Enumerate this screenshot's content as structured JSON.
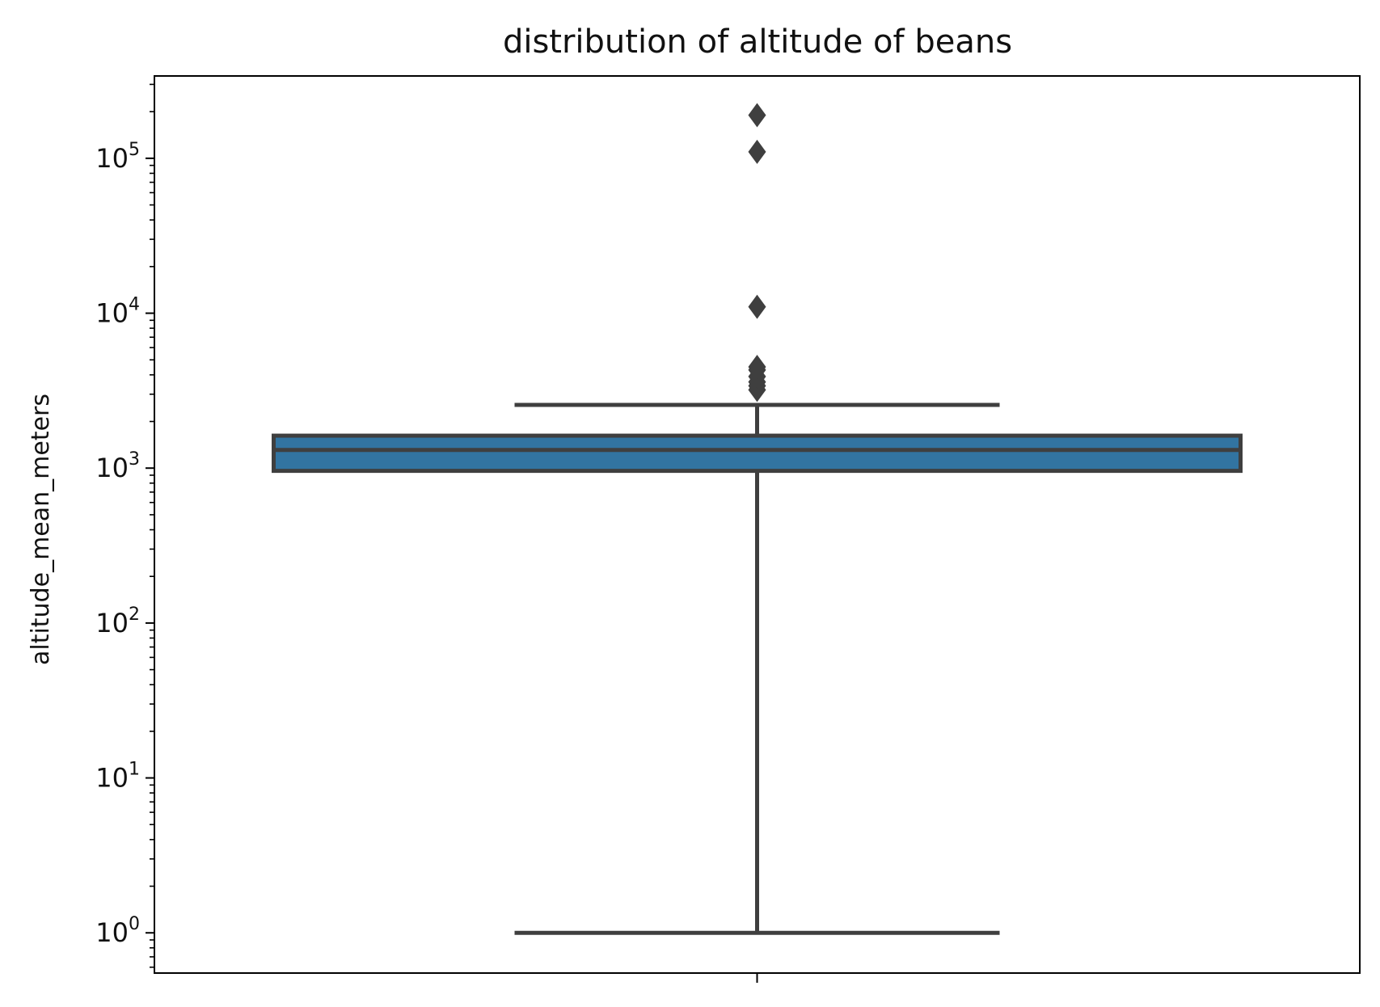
{
  "chart_data": {
    "type": "box",
    "title": "distribution of altitude of beans",
    "ylabel": "altitude_mean_meters",
    "xlabel": "",
    "y_scale": "log",
    "ylim": [
      0.55,
      340000
    ],
    "yticks": [
      {
        "value": 1,
        "base": "10",
        "exp": "0"
      },
      {
        "value": 10,
        "base": "10",
        "exp": "1"
      },
      {
        "value": 100,
        "base": "10",
        "exp": "2"
      },
      {
        "value": 1000,
        "base": "10",
        "exp": "3"
      },
      {
        "value": 10000,
        "base": "10",
        "exp": "4"
      },
      {
        "value": 100000,
        "base": "10",
        "exp": "5"
      }
    ],
    "box": {
      "whisker_low": 1,
      "q1": 960,
      "median": 1310,
      "q3": 1620,
      "whisker_high": 2560
    },
    "outliers": [
      3200,
      3400,
      3600,
      3900,
      4300,
      4500,
      11000,
      110000,
      190000
    ],
    "grid": false,
    "colors": {
      "box_fill": "#3274a1",
      "line": "#3f3f3f",
      "axis": "#000000"
    }
  }
}
